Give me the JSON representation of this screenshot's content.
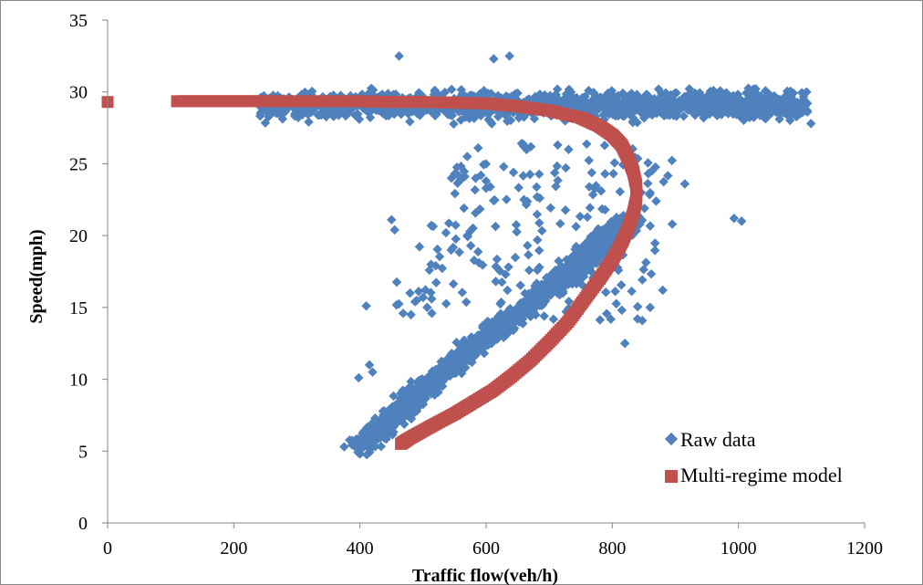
{
  "chart_data": {
    "type": "scatter",
    "title": "",
    "xlabel": "Traffic flow(veh/h)",
    "ylabel": "Speed(mph)",
    "xlim": [
      0,
      1200
    ],
    "ylim": [
      0,
      35
    ],
    "x_ticks": [
      "0",
      "200",
      "400",
      "600",
      "800",
      "1000",
      "1200"
    ],
    "y_ticks": [
      "0",
      "5",
      "10",
      "15",
      "20",
      "25",
      "30",
      "35"
    ],
    "grid": false,
    "legend_position": "bottom-right",
    "colors": {
      "raw": "#4F81BD",
      "model": "#C0504D"
    },
    "series": [
      {
        "name": "Raw data",
        "marker": "diamond",
        "clusters": [
          {
            "region": "free-flow",
            "x_range": [
              240,
              1110
            ],
            "y_range": [
              26.5,
              31.5
            ],
            "count": 1500
          },
          {
            "region": "congested",
            "x": [
              [
                400,
                5.2
              ],
              [
                480,
                8.5
              ],
              [
                560,
                11.5
              ],
              [
                640,
                14.2
              ],
              [
                720,
                17.0
              ],
              [
                790,
                19.8
              ],
              [
                830,
                21.0
              ]
            ],
            "spread": 50,
            "count": 1500
          },
          {
            "region": "transition",
            "x_range": [
              430,
              900
            ],
            "y_range": [
              14,
              26.5
            ],
            "count": 220
          }
        ],
        "sample_points": [
          [
            1115,
            27.8
          ],
          [
            1005,
            21.0
          ],
          [
            993,
            21.2
          ],
          [
            915,
            23.6
          ],
          [
            895,
            20.8
          ],
          [
            880,
            16.2
          ],
          [
            860,
            15.0
          ],
          [
            840,
            14.2
          ],
          [
            820,
            12.5
          ],
          [
            450,
            21.1
          ],
          [
            455,
            20.4
          ],
          [
            410,
            15.1
          ],
          [
            398,
            10.1
          ],
          [
            415,
            11.0
          ],
          [
            420,
            10.5
          ],
          [
            375,
            5.3
          ],
          [
            400,
            4.8
          ],
          [
            462,
            32.5
          ],
          [
            637,
            32.5
          ],
          [
            612,
            32.3
          ],
          [
            545,
            24.0
          ],
          [
            570,
            25.5
          ],
          [
            600,
            23.8
          ],
          [
            660,
            22.5
          ]
        ]
      },
      {
        "name": "Multi-regime model",
        "marker": "square",
        "points": [
          [
            0,
            29.3
          ],
          [
            110,
            29.35
          ],
          [
            130,
            29.35
          ],
          [
            150,
            29.35
          ],
          [
            170,
            29.35
          ],
          [
            190,
            29.35
          ],
          [
            210,
            29.35
          ],
          [
            230,
            29.35
          ],
          [
            250,
            29.35
          ],
          [
            300,
            29.35
          ],
          [
            350,
            29.35
          ],
          [
            400,
            29.35
          ],
          [
            450,
            29.3
          ],
          [
            500,
            29.3
          ],
          [
            550,
            29.25
          ],
          [
            600,
            29.2
          ],
          [
            650,
            29.0
          ],
          [
            700,
            28.7
          ],
          [
            750,
            28.2
          ],
          [
            780,
            27.6
          ],
          [
            800,
            27.0
          ],
          [
            815,
            26.3
          ],
          [
            825,
            25.4
          ],
          [
            833,
            24.5
          ],
          [
            838,
            23.5
          ],
          [
            838,
            22.5
          ],
          [
            833,
            21.5
          ],
          [
            825,
            20.5
          ],
          [
            815,
            19.5
          ],
          [
            800,
            18.3
          ],
          [
            780,
            17.0
          ],
          [
            755,
            15.5
          ],
          [
            730,
            14.0
          ],
          [
            700,
            12.6
          ],
          [
            670,
            11.3
          ],
          [
            640,
            10.2
          ],
          [
            610,
            9.2
          ],
          [
            580,
            8.4
          ],
          [
            550,
            7.6
          ],
          [
            520,
            6.9
          ],
          [
            495,
            6.3
          ],
          [
            475,
            5.8
          ],
          [
            465,
            5.5
          ]
        ]
      }
    ]
  }
}
